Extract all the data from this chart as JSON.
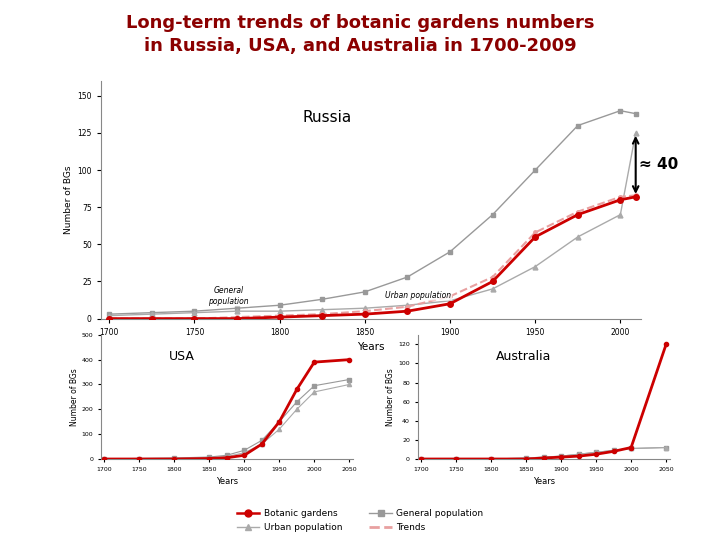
{
  "title_line1": "Long-term trends of botanic gardens numbers",
  "title_line2": "in Russia, USA, and Australia in 1700-2009",
  "title_color": "#8B0000",
  "title_fontsize": 13,
  "russia_years": [
    1700,
    1725,
    1750,
    1775,
    1800,
    1825,
    1850,
    1875,
    1900,
    1925,
    1950,
    1975,
    2000,
    2009
  ],
  "russia_botanic": [
    0,
    0,
    0,
    0,
    1,
    2,
    3,
    5,
    10,
    25,
    55,
    70,
    80,
    82
  ],
  "russia_urban": [
    2,
    3,
    4,
    5,
    5,
    6,
    7,
    9,
    12,
    20,
    35,
    55,
    70,
    125
  ],
  "russia_general": [
    3,
    4,
    5,
    7,
    9,
    13,
    18,
    28,
    45,
    70,
    100,
    130,
    140,
    138
  ],
  "russia_trend": [
    0,
    0,
    0,
    1,
    2,
    3,
    5,
    8,
    15,
    28,
    58,
    72,
    82,
    83
  ],
  "russia_ylim": [
    0,
    160
  ],
  "russia_yticks": [
    0,
    25,
    50,
    75,
    100,
    125,
    150
  ],
  "russia_xticks": [
    1700,
    1750,
    1800,
    1850,
    1900,
    1950,
    2000
  ],
  "usa_years": [
    1700,
    1750,
    1800,
    1850,
    1875,
    1900,
    1925,
    1950,
    1975,
    2000,
    2050
  ],
  "usa_botanic": [
    0,
    0,
    0,
    2,
    5,
    15,
    60,
    150,
    280,
    390,
    400
  ],
  "usa_urban": [
    1,
    2,
    3,
    5,
    10,
    25,
    60,
    120,
    200,
    270,
    300
  ],
  "usa_general": [
    1,
    2,
    4,
    8,
    15,
    35,
    75,
    150,
    230,
    295,
    320
  ],
  "usa_ylim": [
    0,
    500
  ],
  "usa_yticks": [
    0,
    100,
    200,
    300,
    400,
    500
  ],
  "usa_xticks": [
    1700,
    1750,
    1800,
    1850,
    1900,
    1950,
    2000,
    2050
  ],
  "aus_years": [
    1700,
    1750,
    1800,
    1850,
    1875,
    1900,
    1925,
    1950,
    1975,
    2000,
    2050
  ],
  "aus_botanic": [
    0,
    0,
    0,
    0,
    1,
    2,
    3,
    5,
    8,
    12,
    120
  ],
  "aus_urban": [
    0,
    0,
    0,
    1,
    2,
    3,
    5,
    7,
    9,
    11,
    12
  ],
  "aus_general": [
    0,
    0,
    0,
    1,
    2,
    3,
    5,
    7,
    9,
    11,
    12
  ],
  "aus_ylim": [
    0,
    130
  ],
  "aus_yticks": [
    0,
    20,
    40,
    60,
    80,
    100,
    120
  ],
  "aus_xticks": [
    1700,
    1750,
    1800,
    1850,
    1900,
    1950,
    2000,
    2050
  ],
  "color_botanic": "#CC0000",
  "color_urban": "#AAAAAA",
  "color_general": "#999999",
  "color_trend": "#E8A0A0",
  "ylabel": "Number of BGs",
  "xlabel": "Years",
  "legend_botanic": "Botanic gardens",
  "legend_general": "General population",
  "legend_urban": "Urban population",
  "legend_trends": "Trends"
}
